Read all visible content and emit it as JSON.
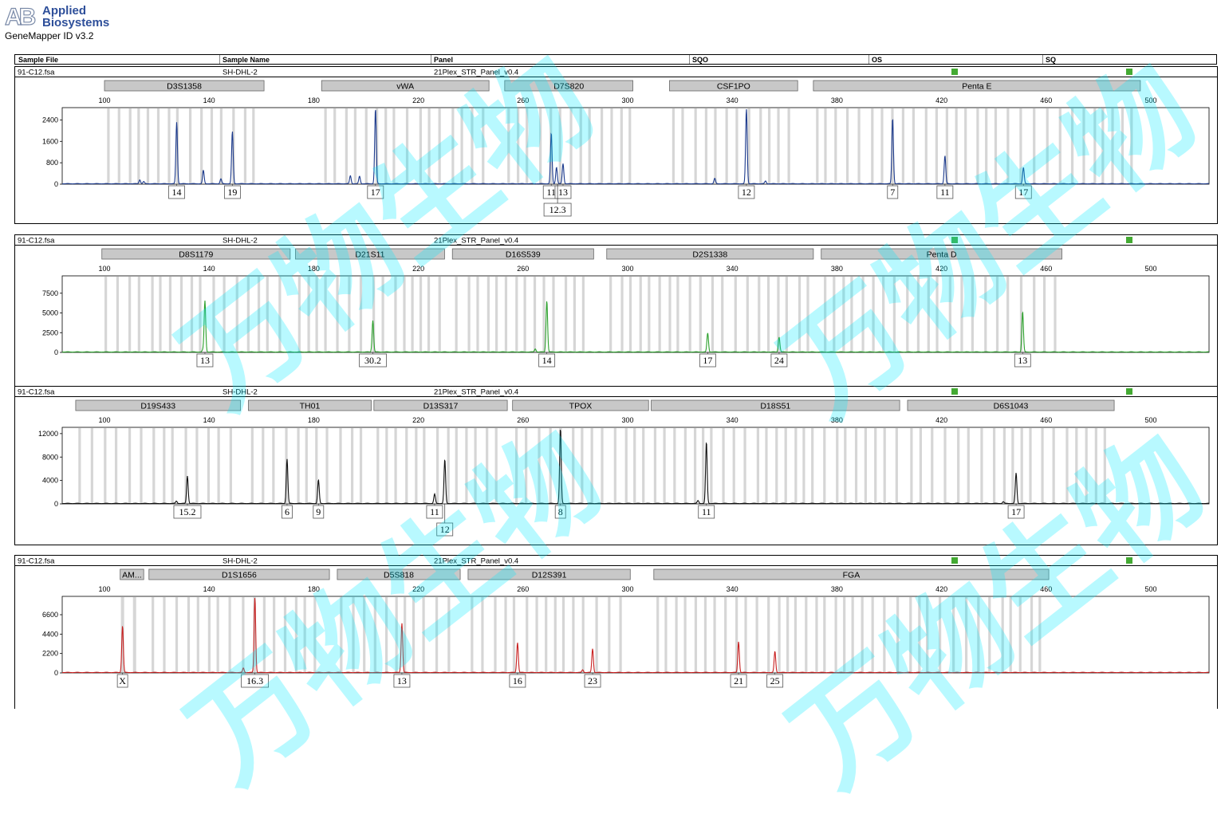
{
  "app": {
    "logo_mark": "AB",
    "brand_line1": "Applied",
    "brand_line2": "Biosystems",
    "version": "GeneMapper ID v3.2"
  },
  "header": {
    "sample_file": "Sample File",
    "sample_name": "Sample Name",
    "panel": "Panel",
    "sqo": "SQO",
    "os": "OS",
    "sq": "SQ"
  },
  "watermark": "万物生物",
  "colors": {
    "blue": "#1c3a8c",
    "green": "#2ca02c",
    "black": "#111111",
    "red": "#c82020",
    "quality": "#44aa33",
    "bin": "#d6d6d6",
    "locus": "#c8c8c8"
  },
  "chart_data": [
    {
      "type": "line",
      "sample_file": "91-C12.fsa",
      "sample_name": "SH-DHL-2",
      "panel": "21Plex_STR_Panel_v0.4",
      "dye": "blue",
      "xlabel": "",
      "ylabel": "",
      "x_ticks": [
        100,
        140,
        180,
        220,
        260,
        300,
        340,
        380,
        420,
        460,
        500
      ],
      "y_ticks": [
        0,
        800,
        1600,
        2400
      ],
      "ylim": [
        0,
        2800
      ],
      "xlim": [
        85,
        525
      ],
      "loci": [
        {
          "name": "D3S1358",
          "start": 100,
          "end": 161
        },
        {
          "name": "vWA",
          "start": 183,
          "end": 247
        },
        {
          "name": "D7S820",
          "start": 253,
          "end": 302
        },
        {
          "name": "CSF1PO",
          "start": 316,
          "end": 365
        },
        {
          "name": "Penta E",
          "start": 371,
          "end": 496
        }
      ],
      "peaks": [
        {
          "x": 115,
          "y": 80
        },
        {
          "x": 113.5,
          "y": 150
        },
        {
          "x": 113.7,
          "y": 0
        },
        {
          "x": 127.6,
          "y": 2300
        },
        {
          "x": 137.8,
          "y": 500
        },
        {
          "x": 144.5,
          "y": 180
        },
        {
          "x": 148.9,
          "y": 1950
        },
        {
          "x": 194,
          "y": 300
        },
        {
          "x": 197.5,
          "y": 280
        },
        {
          "x": 203.6,
          "y": 2800
        },
        {
          "x": 270.8,
          "y": 1900
        },
        {
          "x": 272.8,
          "y": 620
        },
        {
          "x": 275.3,
          "y": 750
        },
        {
          "x": 333.3,
          "y": 200
        },
        {
          "x": 345.4,
          "y": 2800
        },
        {
          "x": 352.7,
          "y": 100
        },
        {
          "x": 401.3,
          "y": 2450
        },
        {
          "x": 421.3,
          "y": 1050
        },
        {
          "x": 451.3,
          "y": 600
        }
      ],
      "alleles": [
        {
          "label": "14",
          "x": 127.6
        },
        {
          "label": "19",
          "x": 148.9
        },
        {
          "label": "17",
          "x": 203.6
        },
        {
          "label": "11",
          "x": 270.8
        },
        {
          "label": "13",
          "x": 275.3
        },
        {
          "label": "12.3",
          "x": 273.2,
          "row": 2
        },
        {
          "label": "12",
          "x": 345.4
        },
        {
          "label": "7",
          "x": 401.3
        },
        {
          "label": "11",
          "x": 421.3
        },
        {
          "label": "17",
          "x": 451.3
        }
      ]
    },
    {
      "type": "line",
      "sample_file": "91-C12.fsa",
      "sample_name": "SH-DHL-2",
      "panel": "21Plex_STR_Panel_v0.4",
      "dye": "green",
      "xlabel": "",
      "ylabel": "",
      "x_ticks": [
        100,
        140,
        180,
        220,
        260,
        300,
        340,
        380,
        420,
        460,
        500
      ],
      "y_ticks": [
        0,
        2500,
        5000,
        7500
      ],
      "ylim": [
        0,
        9500
      ],
      "xlim": [
        85,
        525
      ],
      "loci": [
        {
          "name": "D8S1179",
          "start": 99,
          "end": 171
        },
        {
          "name": "D21S11",
          "start": 173,
          "end": 230
        },
        {
          "name": "D16S539",
          "start": 233,
          "end": 287
        },
        {
          "name": "D2S1338",
          "start": 292,
          "end": 371
        },
        {
          "name": "Penta D",
          "start": 374,
          "end": 466
        }
      ],
      "peaks": [
        {
          "x": 137.6,
          "y": 250
        },
        {
          "x": 138.4,
          "y": 6500
        },
        {
          "x": 202.6,
          "y": 4000
        },
        {
          "x": 264.7,
          "y": 400
        },
        {
          "x": 269.1,
          "y": 6500
        },
        {
          "x": 330.6,
          "y": 2400
        },
        {
          "x": 357.9,
          "y": 1900
        },
        {
          "x": 451,
          "y": 5100
        }
      ],
      "alleles": [
        {
          "label": "13",
          "x": 138.4
        },
        {
          "label": "30.2",
          "x": 202.6
        },
        {
          "label": "14",
          "x": 269.1
        },
        {
          "label": "17",
          "x": 330.6
        },
        {
          "label": "24",
          "x": 357.9
        },
        {
          "label": "13",
          "x": 451
        }
      ]
    },
    {
      "type": "line",
      "sample_file": "91-C12.fsa",
      "sample_name": "SH-DHL-2",
      "panel": "21Plex_STR_Panel_v0.4",
      "dye": "black",
      "xlabel": "",
      "ylabel": "",
      "x_ticks": [
        100,
        140,
        180,
        220,
        260,
        300,
        340,
        380,
        420,
        460,
        500
      ],
      "y_ticks": [
        0,
        4000,
        8000,
        12000
      ],
      "ylim": [
        0,
        12800
      ],
      "xlim": [
        85,
        525
      ],
      "loci": [
        {
          "name": "D19S433",
          "start": 89,
          "end": 152
        },
        {
          "name": "TH01",
          "start": 155,
          "end": 202
        },
        {
          "name": "D13S317",
          "start": 203,
          "end": 254
        },
        {
          "name": "TPOX",
          "start": 256,
          "end": 308
        },
        {
          "name": "D18S51",
          "start": 309,
          "end": 404
        },
        {
          "name": "D6S1043",
          "start": 407,
          "end": 486
        }
      ],
      "peaks": [
        {
          "x": 127.5,
          "y": 400
        },
        {
          "x": 131.7,
          "y": 4700
        },
        {
          "x": 169.8,
          "y": 7600
        },
        {
          "x": 181.8,
          "y": 4000
        },
        {
          "x": 226.2,
          "y": 1600
        },
        {
          "x": 230.1,
          "y": 7500
        },
        {
          "x": 274.3,
          "y": 12800
        },
        {
          "x": 326.9,
          "y": 500
        },
        {
          "x": 330.1,
          "y": 10500
        },
        {
          "x": 443.6,
          "y": 300
        },
        {
          "x": 448.5,
          "y": 5200
        }
      ],
      "alleles": [
        {
          "label": "15.2",
          "x": 131.7
        },
        {
          "label": "6",
          "x": 169.8
        },
        {
          "label": "9",
          "x": 181.8
        },
        {
          "label": "11",
          "x": 226.2
        },
        {
          "label": "12",
          "x": 230.1,
          "row": 2
        },
        {
          "label": "8",
          "x": 274.3
        },
        {
          "label": "11",
          "x": 330.1
        },
        {
          "label": "17",
          "x": 448.5
        }
      ]
    },
    {
      "type": "line",
      "sample_file": "91-C12.fsa",
      "sample_name": "SH-DHL-2",
      "panel": "21Plex_STR_Panel_v0.4",
      "dye": "red",
      "xlabel": "",
      "ylabel": "",
      "x_ticks": [
        100,
        140,
        180,
        220,
        260,
        300,
        340,
        380,
        420,
        460,
        500
      ],
      "y_ticks": [
        0,
        2200,
        4400,
        6600
      ],
      "ylim": [
        0,
        8500
      ],
      "xlim": [
        85,
        525
      ],
      "loci": [
        {
          "name": "AM...",
          "start": 106,
          "end": 115
        },
        {
          "name": "D1S1656",
          "start": 117,
          "end": 186
        },
        {
          "name": "D5S818",
          "start": 189,
          "end": 236
        },
        {
          "name": "D12S391",
          "start": 239,
          "end": 301
        },
        {
          "name": "FGA",
          "start": 310,
          "end": 461
        }
      ],
      "peaks": [
        {
          "x": 106.9,
          "y": 5300
        },
        {
          "x": 153.1,
          "y": 500
        },
        {
          "x": 157.5,
          "y": 8500
        },
        {
          "x": 213.7,
          "y": 5600
        },
        {
          "x": 257.9,
          "y": 3400
        },
        {
          "x": 282.8,
          "y": 300
        },
        {
          "x": 286.6,
          "y": 2700
        },
        {
          "x": 342.4,
          "y": 3500
        },
        {
          "x": 356.3,
          "y": 2400
        }
      ],
      "alleles": [
        {
          "label": "X",
          "x": 106.9
        },
        {
          "label": "16.3",
          "x": 157.5
        },
        {
          "label": "13",
          "x": 213.7
        },
        {
          "label": "16",
          "x": 257.9
        },
        {
          "label": "23",
          "x": 286.6
        },
        {
          "label": "21",
          "x": 342.4
        },
        {
          "label": "25",
          "x": 356.3
        }
      ]
    }
  ]
}
